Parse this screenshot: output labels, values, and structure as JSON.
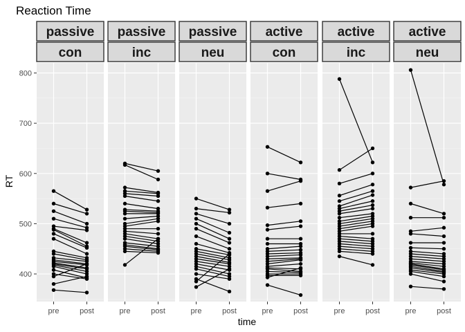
{
  "chart_data": {
    "type": "line",
    "title": "Reaction Time",
    "xlabel": "time",
    "ylabel": "RT",
    "x_categories": [
      "pre",
      "post"
    ],
    "ylim": [
      345,
      820
    ],
    "yticks": [
      400,
      500,
      600,
      700,
      800
    ],
    "grid": true,
    "panel_background": "#ebebeb",
    "strip_background": "#d9d9d9",
    "point_color": "#000000",
    "panels": [
      {
        "strip": [
          "passive",
          "con"
        ],
        "pairs": [
          [
            565,
            528
          ],
          [
            540,
            520
          ],
          [
            525,
            500
          ],
          [
            510,
            492
          ],
          [
            495,
            487
          ],
          [
            490,
            462
          ],
          [
            488,
            455
          ],
          [
            480,
            452
          ],
          [
            470,
            440
          ],
          [
            445,
            432
          ],
          [
            440,
            428
          ],
          [
            432,
            425
          ],
          [
            428,
            420
          ],
          [
            425,
            418
          ],
          [
            422,
            412
          ],
          [
            420,
            410
          ],
          [
            418,
            405
          ],
          [
            415,
            400
          ],
          [
            408,
            392
          ],
          [
            400,
            390
          ],
          [
            395,
            420
          ],
          [
            380,
            395
          ],
          [
            368,
            363
          ]
        ]
      },
      {
        "strip": [
          "passive",
          "inc"
        ],
        "pairs": [
          [
            620,
            605
          ],
          [
            617,
            588
          ],
          [
            572,
            562
          ],
          [
            565,
            560
          ],
          [
            560,
            555
          ],
          [
            555,
            545
          ],
          [
            540,
            530
          ],
          [
            528,
            525
          ],
          [
            525,
            522
          ],
          [
            520,
            520
          ],
          [
            510,
            515
          ],
          [
            500,
            510
          ],
          [
            495,
            505
          ],
          [
            490,
            490
          ],
          [
            485,
            480
          ],
          [
            480,
            470
          ],
          [
            475,
            465
          ],
          [
            470,
            460
          ],
          [
            462,
            455
          ],
          [
            458,
            450
          ],
          [
            455,
            448
          ],
          [
            450,
            445
          ],
          [
            445,
            442
          ],
          [
            418,
            470
          ]
        ]
      },
      {
        "strip": [
          "passive",
          "neu"
        ],
        "pairs": [
          [
            550,
            528
          ],
          [
            530,
            522
          ],
          [
            520,
            500
          ],
          [
            510,
            482
          ],
          [
            500,
            470
          ],
          [
            490,
            462
          ],
          [
            475,
            450
          ],
          [
            460,
            442
          ],
          [
            450,
            438
          ],
          [
            445,
            432
          ],
          [
            440,
            428
          ],
          [
            435,
            423
          ],
          [
            430,
            420
          ],
          [
            425,
            415
          ],
          [
            420,
            408
          ],
          [
            415,
            400
          ],
          [
            410,
            395
          ],
          [
            400,
            390
          ],
          [
            390,
            365
          ],
          [
            385,
            440
          ],
          [
            374,
            410
          ]
        ]
      },
      {
        "strip": [
          "active",
          "con"
        ],
        "pairs": [
          [
            653,
            622
          ],
          [
            600,
            588
          ],
          [
            565,
            585
          ],
          [
            532,
            540
          ],
          [
            497,
            505
          ],
          [
            488,
            495
          ],
          [
            470,
            470
          ],
          [
            460,
            460
          ],
          [
            450,
            455
          ],
          [
            445,
            448
          ],
          [
            440,
            442
          ],
          [
            435,
            438
          ],
          [
            430,
            432
          ],
          [
            425,
            430
          ],
          [
            420,
            428
          ],
          [
            415,
            420
          ],
          [
            412,
            410
          ],
          [
            410,
            405
          ],
          [
            405,
            403
          ],
          [
            400,
            400
          ],
          [
            397,
            397
          ],
          [
            393,
            412
          ],
          [
            378,
            358
          ]
        ]
      },
      {
        "strip": [
          "active",
          "inc"
        ],
        "pairs": [
          [
            788,
            622
          ],
          [
            607,
            650
          ],
          [
            580,
            600
          ],
          [
            556,
            578
          ],
          [
            545,
            565
          ],
          [
            535,
            557
          ],
          [
            530,
            545
          ],
          [
            525,
            537
          ],
          [
            520,
            530
          ],
          [
            512,
            520
          ],
          [
            505,
            515
          ],
          [
            500,
            510
          ],
          [
            495,
            505
          ],
          [
            490,
            500
          ],
          [
            485,
            495
          ],
          [
            480,
            480
          ],
          [
            475,
            470
          ],
          [
            470,
            465
          ],
          [
            465,
            460
          ],
          [
            460,
            455
          ],
          [
            455,
            450
          ],
          [
            450,
            445
          ],
          [
            445,
            440
          ],
          [
            435,
            418
          ]
        ]
      },
      {
        "strip": [
          "active",
          "neu"
        ],
        "pairs": [
          [
            806,
            578
          ],
          [
            572,
            585
          ],
          [
            540,
            520
          ],
          [
            512,
            512
          ],
          [
            485,
            492
          ],
          [
            480,
            475
          ],
          [
            462,
            462
          ],
          [
            452,
            450
          ],
          [
            445,
            440
          ],
          [
            440,
            435
          ],
          [
            435,
            430
          ],
          [
            430,
            425
          ],
          [
            425,
            420
          ],
          [
            422,
            415
          ],
          [
            420,
            410
          ],
          [
            418,
            408
          ],
          [
            415,
            405
          ],
          [
            412,
            403
          ],
          [
            408,
            400
          ],
          [
            405,
            395
          ],
          [
            400,
            385
          ],
          [
            375,
            370
          ]
        ]
      }
    ]
  }
}
